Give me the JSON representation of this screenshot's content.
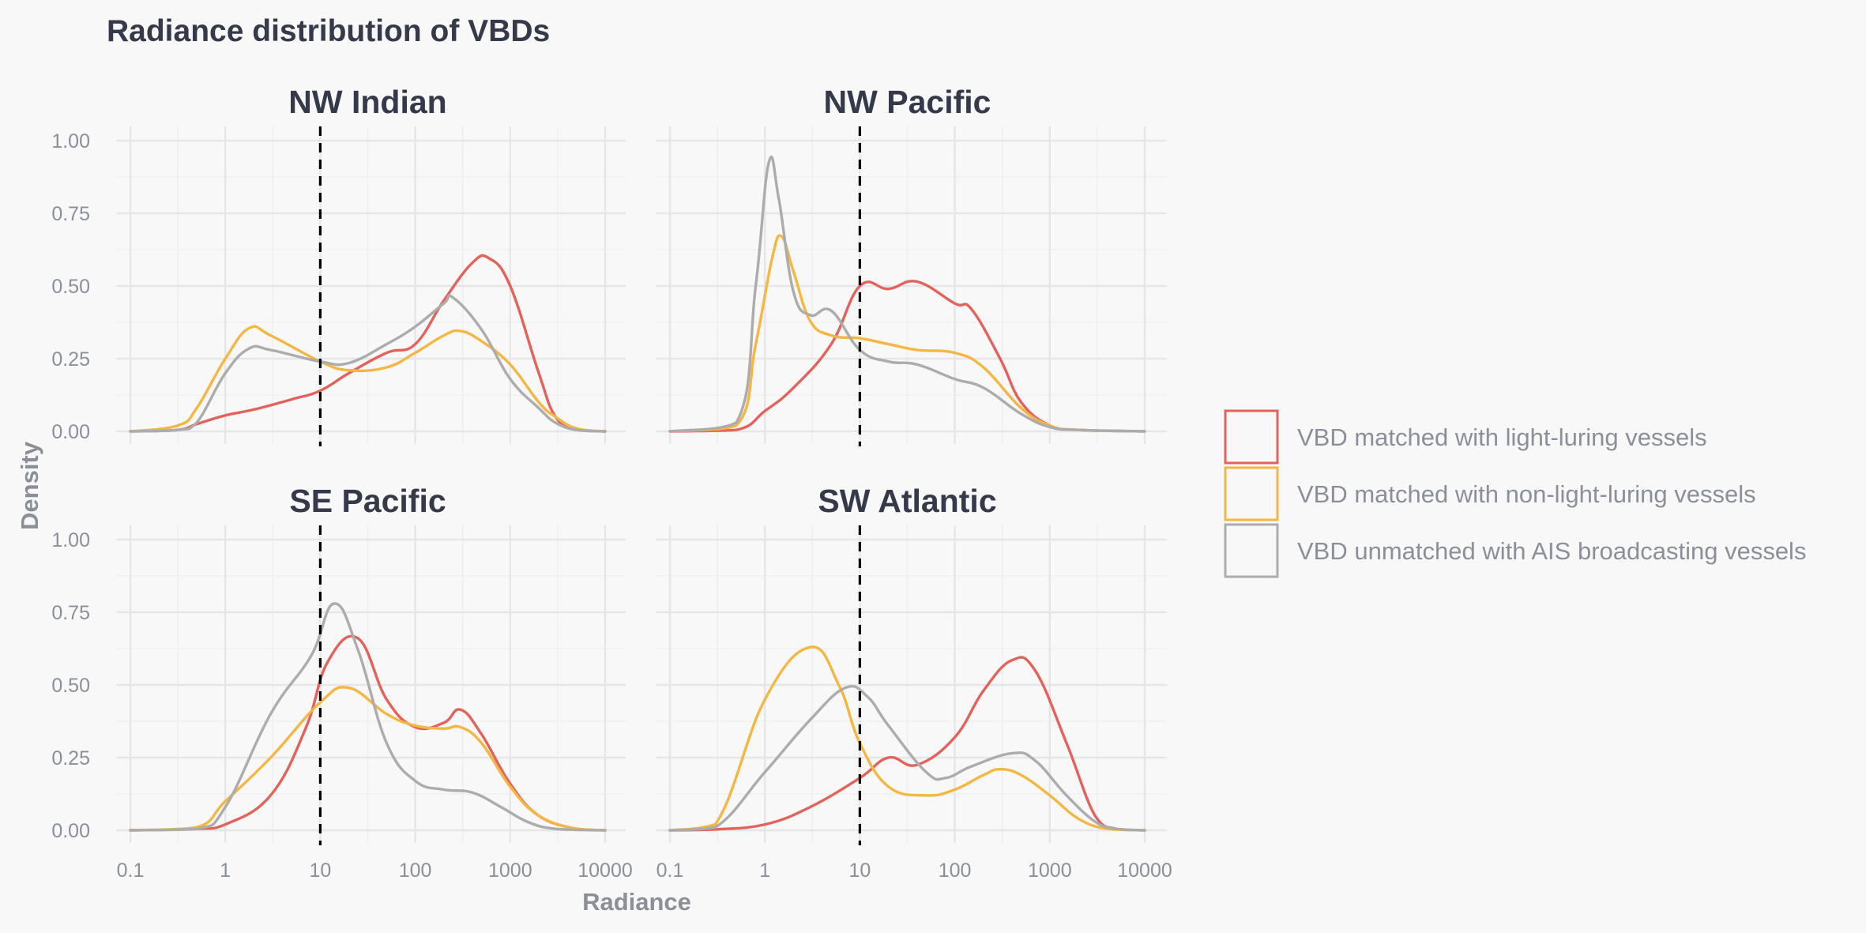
{
  "chart_data": {
    "type": "line",
    "title": "Radiance distribution of VBDs",
    "xlabel": "Radiance",
    "ylabel": "Density",
    "x_scale": "log10",
    "xlim": [
      0.1,
      10000
    ],
    "ylim": [
      0,
      1
    ],
    "x_ticks": [
      "0.1",
      "1",
      "10",
      "100",
      "1000",
      "10000"
    ],
    "x_tick_values": [
      0.1,
      1,
      10,
      100,
      1000,
      10000
    ],
    "y_ticks": [
      "0.00",
      "0.25",
      "0.50",
      "0.75",
      "1.00"
    ],
    "y_tick_values": [
      0,
      0.25,
      0.5,
      0.75,
      1
    ],
    "grid": true,
    "legend_position": "right",
    "reference_line": {
      "x": 10,
      "style": "dashed",
      "color": "#000000"
    },
    "legend": [
      {
        "label": "VBD matched with light-luring vessels",
        "color": "#e5625b"
      },
      {
        "label": "VBD matched with non-light-luring vessels",
        "color": "#f5b642"
      },
      {
        "label": "VBD unmatched with AIS broadcasting vessels",
        "color": "#acacac"
      }
    ],
    "facets": [
      {
        "title": "NW Indian",
        "series": [
          {
            "color": "#e5625b",
            "points": [
              [
                0.1,
                0
              ],
              [
                0.316,
                0.005
              ],
              [
                0.5,
                0.025
              ],
              [
                1,
                0.055
              ],
              [
                2,
                0.075
              ],
              [
                5,
                0.11
              ],
              [
                10,
                0.14
              ],
              [
                20,
                0.2
              ],
              [
                50,
                0.27
              ],
              [
                100,
                0.3
              ],
              [
                200,
                0.45
              ],
              [
                400,
                0.58
              ],
              [
                600,
                0.595
              ],
              [
                1000,
                0.5
              ],
              [
                2000,
                0.2
              ],
              [
                3000,
                0.05
              ],
              [
                5000,
                0.005
              ],
              [
                10000,
                0
              ]
            ]
          },
          {
            "color": "#f5b642",
            "points": [
              [
                0.1,
                0
              ],
              [
                0.316,
                0.02
              ],
              [
                0.5,
                0.08
              ],
              [
                1,
                0.25
              ],
              [
                1.78,
                0.355
              ],
              [
                3,
                0.33
              ],
              [
                10,
                0.24
              ],
              [
                20,
                0.21
              ],
              [
                50,
                0.22
              ],
              [
                100,
                0.27
              ],
              [
                200,
                0.33
              ],
              [
                300,
                0.345
              ],
              [
                500,
                0.31
              ],
              [
                1000,
                0.23
              ],
              [
                2000,
                0.1
              ],
              [
                3000,
                0.05
              ],
              [
                5000,
                0.01
              ],
              [
                10000,
                0
              ]
            ]
          },
          {
            "color": "#acacac",
            "points": [
              [
                0.1,
                0
              ],
              [
                0.316,
                0.005
              ],
              [
                0.5,
                0.03
              ],
              [
                1,
                0.2
              ],
              [
                1.78,
                0.285
              ],
              [
                3,
                0.28
              ],
              [
                10,
                0.24
              ],
              [
                20,
                0.235
              ],
              [
                50,
                0.3
              ],
              [
                100,
                0.36
              ],
              [
                200,
                0.44
              ],
              [
                250,
                0.46
              ],
              [
                500,
                0.35
              ],
              [
                1000,
                0.18
              ],
              [
                2000,
                0.08
              ],
              [
                3000,
                0.03
              ],
              [
                5000,
                0.005
              ],
              [
                10000,
                0
              ]
            ]
          }
        ]
      },
      {
        "title": "NW Pacific",
        "series": [
          {
            "color": "#e5625b",
            "points": [
              [
                0.1,
                0
              ],
              [
                0.5,
                0.005
              ],
              [
                1,
                0.07
              ],
              [
                2,
                0.15
              ],
              [
                5,
                0.3
              ],
              [
                10,
                0.5
              ],
              [
                20,
                0.49
              ],
              [
                40,
                0.515
              ],
              [
                100,
                0.44
              ],
              [
                150,
                0.42
              ],
              [
                300,
                0.25
              ],
              [
                500,
                0.1
              ],
              [
                1000,
                0.02
              ],
              [
                2000,
                0.005
              ],
              [
                10000,
                0
              ]
            ]
          },
          {
            "color": "#f5b642",
            "points": [
              [
                0.1,
                0
              ],
              [
                0.5,
                0.02
              ],
              [
                0.8,
                0.3
              ],
              [
                1.2,
                0.6
              ],
              [
                1.5,
                0.67
              ],
              [
                2,
                0.55
              ],
              [
                3,
                0.38
              ],
              [
                5,
                0.33
              ],
              [
                10,
                0.32
              ],
              [
                20,
                0.3
              ],
              [
                40,
                0.28
              ],
              [
                100,
                0.27
              ],
              [
                200,
                0.22
              ],
              [
                500,
                0.08
              ],
              [
                1000,
                0.02
              ],
              [
                2000,
                0.005
              ],
              [
                10000,
                0
              ]
            ]
          },
          {
            "color": "#acacac",
            "points": [
              [
                0.1,
                0
              ],
              [
                0.5,
                0.03
              ],
              [
                0.8,
                0.5
              ],
              [
                1.1,
                0.925
              ],
              [
                1.4,
                0.8
              ],
              [
                2,
                0.48
              ],
              [
                3,
                0.4
              ],
              [
                5,
                0.415
              ],
              [
                10,
                0.28
              ],
              [
                20,
                0.24
              ],
              [
                40,
                0.23
              ],
              [
                100,
                0.18
              ],
              [
                200,
                0.15
              ],
              [
                500,
                0.06
              ],
              [
                1000,
                0.015
              ],
              [
                2000,
                0.005
              ],
              [
                10000,
                0
              ]
            ]
          }
        ]
      },
      {
        "title": "SE Pacific",
        "series": [
          {
            "color": "#e5625b",
            "points": [
              [
                0.1,
                0
              ],
              [
                0.5,
                0.005
              ],
              [
                1,
                0.02
              ],
              [
                3,
                0.12
              ],
              [
                7,
                0.35
              ],
              [
                12,
                0.58
              ],
              [
                25,
                0.66
              ],
              [
                50,
                0.45
              ],
              [
                100,
                0.355
              ],
              [
                200,
                0.37
              ],
              [
                300,
                0.415
              ],
              [
                500,
                0.33
              ],
              [
                1000,
                0.16
              ],
              [
                2000,
                0.05
              ],
              [
                5000,
                0.005
              ],
              [
                10000,
                0
              ]
            ]
          },
          {
            "color": "#f5b642",
            "points": [
              [
                0.1,
                0
              ],
              [
                0.5,
                0.01
              ],
              [
                1,
                0.1
              ],
              [
                3,
                0.25
              ],
              [
                10,
                0.44
              ],
              [
                20,
                0.49
              ],
              [
                50,
                0.4
              ],
              [
                100,
                0.36
              ],
              [
                200,
                0.35
              ],
              [
                300,
                0.355
              ],
              [
                500,
                0.3
              ],
              [
                1000,
                0.15
              ],
              [
                2000,
                0.05
              ],
              [
                5000,
                0.005
              ],
              [
                10000,
                0
              ]
            ]
          },
          {
            "color": "#acacac",
            "points": [
              [
                0.1,
                0
              ],
              [
                0.5,
                0.005
              ],
              [
                1,
                0.08
              ],
              [
                3,
                0.4
              ],
              [
                8,
                0.6
              ],
              [
                14,
                0.78
              ],
              [
                25,
                0.62
              ],
              [
                50,
                0.3
              ],
              [
                100,
                0.17
              ],
              [
                200,
                0.14
              ],
              [
                400,
                0.13
              ],
              [
                800,
                0.08
              ],
              [
                1500,
                0.03
              ],
              [
                3000,
                0.005
              ],
              [
                10000,
                0
              ]
            ]
          }
        ]
      },
      {
        "title": "SW Atlantic",
        "series": [
          {
            "color": "#e5625b",
            "points": [
              [
                0.1,
                0
              ],
              [
                0.3,
                0.003
              ],
              [
                1,
                0.02
              ],
              [
                3,
                0.08
              ],
              [
                10,
                0.18
              ],
              [
                20,
                0.25
              ],
              [
                40,
                0.225
              ],
              [
                100,
                0.32
              ],
              [
                200,
                0.48
              ],
              [
                400,
                0.585
              ],
              [
                700,
                0.55
              ],
              [
                1500,
                0.3
              ],
              [
                3000,
                0.05
              ],
              [
                5000,
                0.005
              ],
              [
                10000,
                0
              ]
            ]
          },
          {
            "color": "#f5b642",
            "points": [
              [
                0.1,
                0
              ],
              [
                0.3,
                0.02
              ],
              [
                1,
                0.45
              ],
              [
                3,
                0.63
              ],
              [
                6,
                0.5
              ],
              [
                10,
                0.3
              ],
              [
                20,
                0.15
              ],
              [
                50,
                0.12
              ],
              [
                100,
                0.14
              ],
              [
                200,
                0.19
              ],
              [
                300,
                0.21
              ],
              [
                500,
                0.19
              ],
              [
                1000,
                0.12
              ],
              [
                2000,
                0.04
              ],
              [
                4000,
                0.005
              ],
              [
                10000,
                0
              ]
            ]
          },
          {
            "color": "#acacac",
            "points": [
              [
                0.1,
                0
              ],
              [
                0.3,
                0.01
              ],
              [
                1,
                0.2
              ],
              [
                3,
                0.38
              ],
              [
                7,
                0.49
              ],
              [
                12,
                0.46
              ],
              [
                20,
                0.36
              ],
              [
                50,
                0.2
              ],
              [
                80,
                0.18
              ],
              [
                150,
                0.22
              ],
              [
                400,
                0.265
              ],
              [
                700,
                0.24
              ],
              [
                1500,
                0.12
              ],
              [
                3000,
                0.03
              ],
              [
                5000,
                0.005
              ],
              [
                10000,
                0
              ]
            ]
          }
        ]
      }
    ]
  }
}
